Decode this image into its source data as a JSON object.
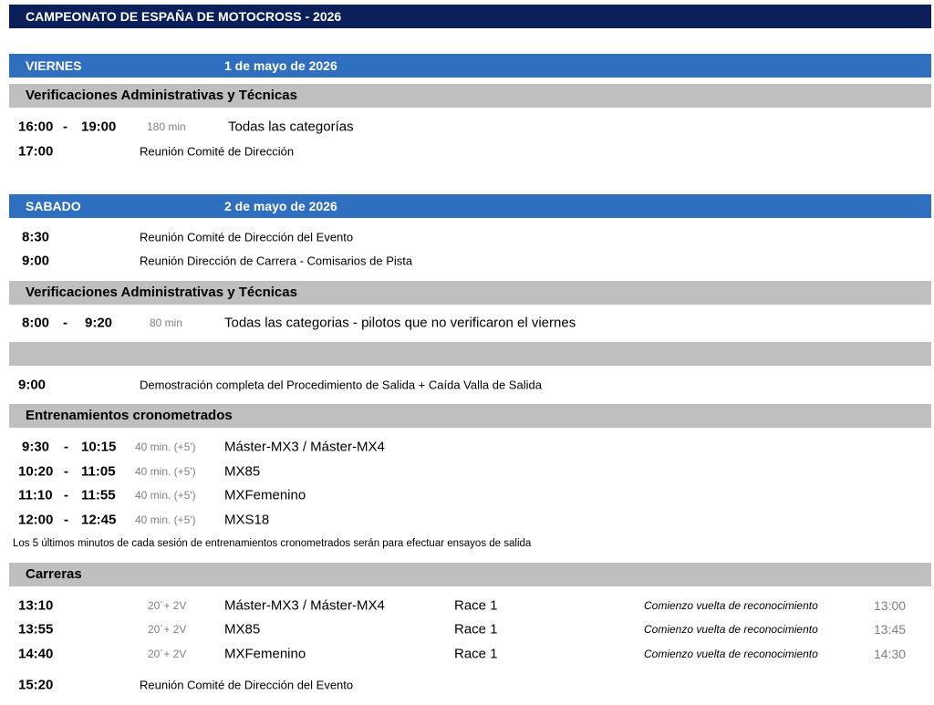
{
  "title": "CAMPEONATO DE ESPAÑA DE MOTOCROSS - 2026",
  "viernes": {
    "day": "VIERNES",
    "date": "1 de mayo de 2026",
    "section": "Verificaciones Administrativas y Técnicas",
    "verif": {
      "start": "16:00",
      "sep": "-",
      "end": "19:00",
      "dur": "180 min",
      "desc": "Todas las categorías"
    },
    "meeting": {
      "time": "17:00",
      "desc": "Reunión Comité de Dirección"
    }
  },
  "sabado": {
    "day": "SABADO",
    "date": "2 de mayo de 2026",
    "meetings": [
      {
        "time": "8:30",
        "desc": "Reunión Comité de Dirección del Evento"
      },
      {
        "time": "9:00",
        "desc": "Reunión Dirección de Carrera - Comisarios de Pista"
      }
    ],
    "section_verif": "Verificaciones Administrativas y Técnicas",
    "verif": {
      "start": "8:00",
      "sep": "-",
      "end": "9:20",
      "dur": "80 min",
      "desc": "Todas las categorias - pilotos que no verificaron el viernes"
    },
    "demo": {
      "time": "9:00",
      "desc": "Demostración completa del Procedimiento de Salida + Caída Valla de Salida"
    },
    "section_training": "Entrenamientos cronometrados",
    "training": [
      {
        "start": "9:30",
        "sep": "-",
        "end": "10:15",
        "dur": "40 min. (+5')",
        "desc": "Máster-MX3 / Máster-MX4"
      },
      {
        "start": "10:20",
        "sep": "-",
        "end": "11:05",
        "dur": "40 min. (+5')",
        "desc": "MX85"
      },
      {
        "start": "11:10",
        "sep": "-",
        "end": "11:55",
        "dur": "40 min. (+5')",
        "desc": "MXFemenino"
      },
      {
        "start": "12:00",
        "sep": "-",
        "end": "12:45",
        "dur": "40 min. (+5')",
        "desc": "MXS18"
      }
    ],
    "training_note": "Los 5 últimos minutos de cada sesión de entrenamientos cronometrados serán para efectuar ensayos de salida",
    "section_races": "Carreras",
    "races": [
      {
        "time": "13:10",
        "dur": "20´+ 2V",
        "desc": "Máster-MX3 / Máster-MX4",
        "race": "Race 1",
        "note": "Comienzo vuelta de reconocimiento",
        "recon": "13:00"
      },
      {
        "time": "13:55",
        "dur": "20´+ 2V",
        "desc": "MX85",
        "race": "Race 1",
        "note": "Comienzo vuelta de reconocimiento",
        "recon": "13:45"
      },
      {
        "time": "14:40",
        "dur": "20´+ 2V",
        "desc": "MXFemenino",
        "race": "Race 1",
        "note": "Comienzo vuelta de reconocimiento",
        "recon": "14:30"
      }
    ],
    "final": {
      "time": "15:20",
      "desc": "Reunión Comité de Dirección del Evento"
    }
  },
  "colors": {
    "title_bg": "#0b1f5a",
    "day_bg": "#2f6fbf",
    "section_bg": "#bfbfbf"
  }
}
